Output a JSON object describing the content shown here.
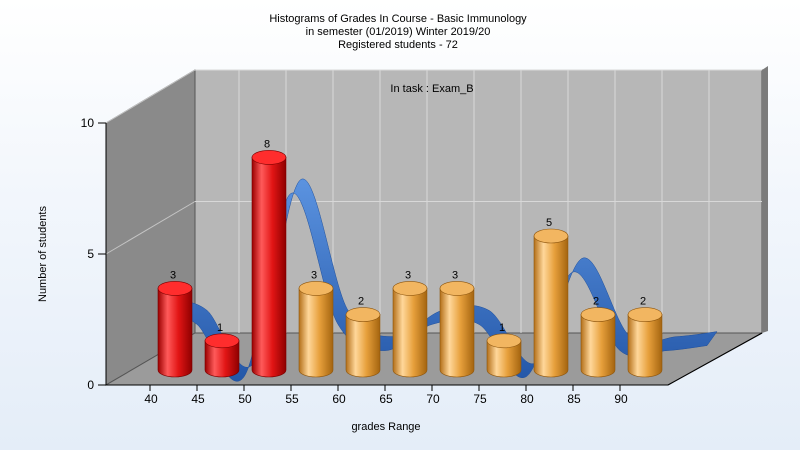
{
  "title_lines": [
    "Histograms of Grades  In Course - Basic Immunology",
    "in semester  (01/2019) Winter 2019/20",
    "Registered students - 72"
  ],
  "chart_data": {
    "type": "bar",
    "title": "Histograms of Grades  In Course - Basic Immunology",
    "subtitle": "in semester  (01/2019) Winter 2019/20 · Registered students - 72",
    "annotation": "In task : Exam_B",
    "xlabel": "grades Range",
    "ylabel": "Number of students",
    "x_ticks": [
      "40",
      "45",
      "50",
      "55",
      "60",
      "65",
      "70",
      "75",
      "80",
      "85",
      "90"
    ],
    "y_ticks": [
      0,
      5,
      10
    ],
    "ylim": [
      0,
      10
    ],
    "grid": true,
    "bars": [
      {
        "label": "3",
        "value": 3,
        "color": "red"
      },
      {
        "label": "1",
        "value": 1,
        "color": "red"
      },
      {
        "label": "8",
        "value": 8,
        "color": "red"
      },
      {
        "label": "3",
        "value": 3,
        "color": "orange"
      },
      {
        "label": "2",
        "value": 2,
        "color": "orange"
      },
      {
        "label": "3",
        "value": 3,
        "color": "orange"
      },
      {
        "label": "3",
        "value": 3,
        "color": "orange"
      },
      {
        "label": "1",
        "value": 1,
        "color": "orange"
      },
      {
        "label": "5",
        "value": 5,
        "color": "orange"
      },
      {
        "label": "2",
        "value": 2,
        "color": "orange"
      },
      {
        "label": "2",
        "value": 2,
        "color": "orange"
      }
    ],
    "colors": {
      "red": "#e81818",
      "orange": "#e8a43e",
      "curve": "#2f6fc4",
      "wall": "#b7b7b7",
      "side_wall": "#8a8a8a"
    }
  }
}
